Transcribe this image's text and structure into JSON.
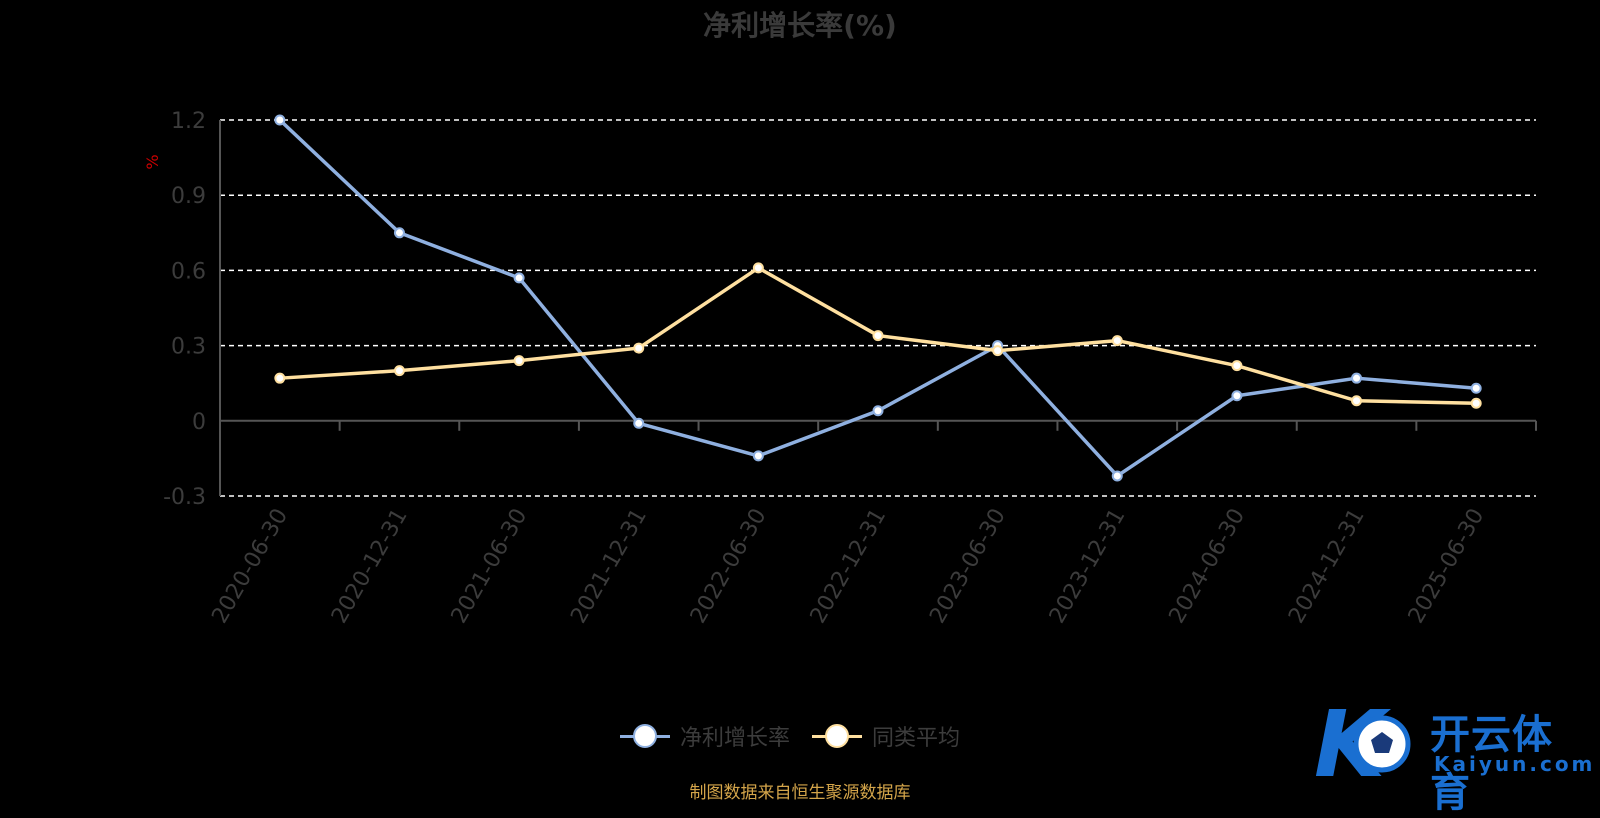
{
  "title": "净利增长率(%)",
  "source_note": "制图数据来自恒生聚源数据库",
  "watermark": {
    "brand_cn": "开云体育",
    "brand_url": "Kaiyun.com",
    "logo_letter": "K"
  },
  "colors": {
    "background": "#000000",
    "series_1": "#8fb0e0",
    "series_2": "#ffe0a0",
    "grid": "#ffffff",
    "axis": "#555555",
    "ylabel": "#cc0000"
  },
  "chart_data": {
    "type": "line",
    "ylabel": "%",
    "ylim": [
      -0.3,
      1.2
    ],
    "yticks": [
      "1.2",
      "0.9",
      "0.6",
      "0.3",
      "0",
      "-0.3"
    ],
    "ytick_values": [
      1.2,
      0.9,
      0.6,
      0.3,
      0,
      -0.3
    ],
    "grid": true,
    "legend_position": "bottom-center",
    "categories": [
      "2020-06-30",
      "2020-12-31",
      "2021-06-30",
      "2021-12-31",
      "2022-06-30",
      "2022-12-31",
      "2023-06-30",
      "2023-12-31",
      "2024-06-30",
      "2024-12-31",
      "2025-06-30"
    ],
    "series": [
      {
        "name": "净利增长率",
        "values": [
          1.2,
          0.75,
          0.57,
          -0.01,
          -0.14,
          0.04,
          0.3,
          -0.22,
          0.1,
          0.17,
          0.13
        ]
      },
      {
        "name": "同类平均",
        "values": [
          0.17,
          0.2,
          0.24,
          0.29,
          0.61,
          0.34,
          0.28,
          0.32,
          0.22,
          0.08,
          0.07
        ]
      }
    ]
  }
}
